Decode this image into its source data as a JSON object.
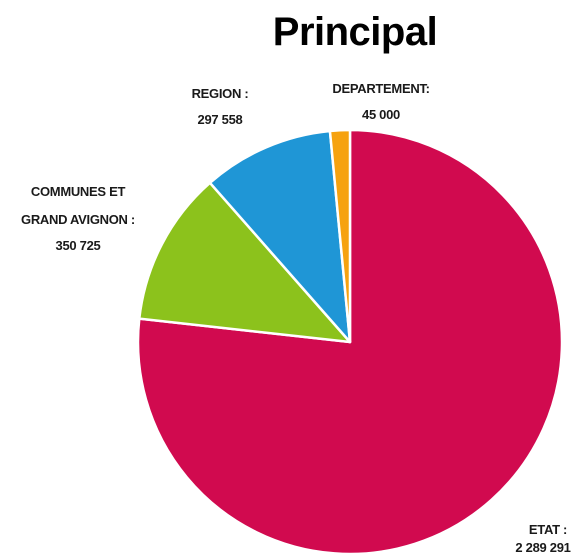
{
  "chart_data": {
    "type": "pie",
    "title": "Principal",
    "slices": [
      {
        "label": "ETAT :",
        "value": 2289291,
        "display": "2 289 291",
        "color": "#d10a4f"
      },
      {
        "label": "COMMUNES ET GRAND AVIGNON :",
        "label_lines": [
          "COMMUNES ET",
          "GRAND AVIGNON :"
        ],
        "value": 350725,
        "display": "350 725",
        "color": "#8cc21c"
      },
      {
        "label": "REGION :",
        "value": 297558,
        "display": "297 558",
        "color": "#1f96d6"
      },
      {
        "label": "DEPARTEMENT:",
        "value": 45000,
        "display": "45 000",
        "color": "#f6a20f"
      }
    ]
  }
}
